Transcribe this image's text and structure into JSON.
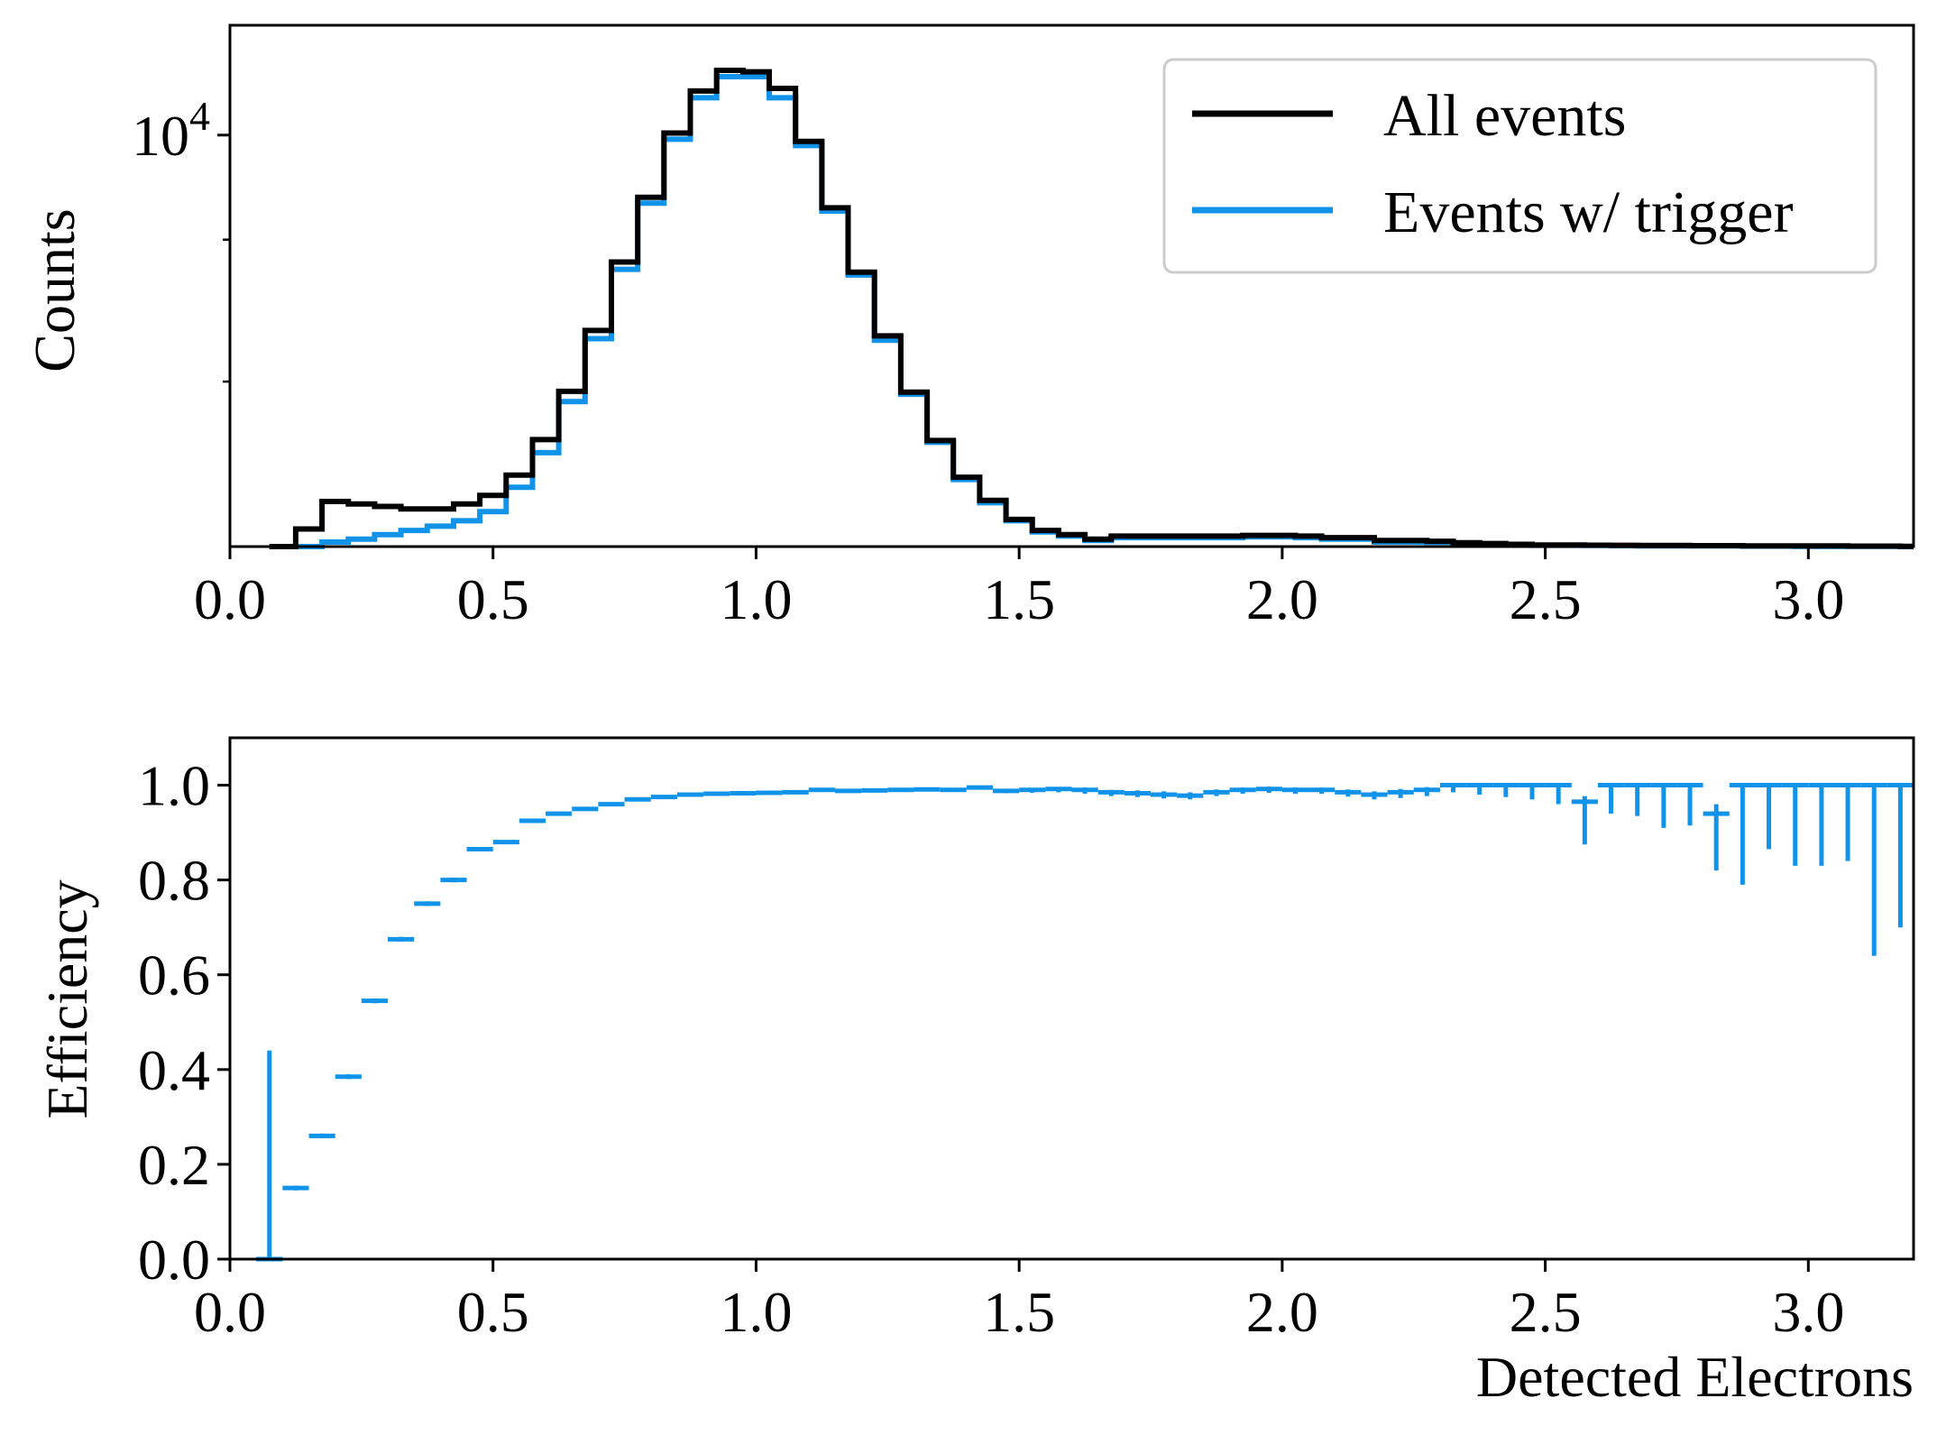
{
  "colors": {
    "all_events": "#000000",
    "triggered": "#1193ea",
    "axes": "#000000",
    "legend_border": "#cccccc",
    "background": "#ffffff"
  },
  "chart_data": [
    {
      "type": "histogram-step",
      "title": "",
      "ylabel": "Counts",
      "xlabel": "",
      "yscale": "log",
      "xlim": [
        0.0,
        3.2
      ],
      "ylim": [
        1340,
        17100
      ],
      "grid": false,
      "legend_position": "top-right",
      "x_ticks": [
        0.0,
        0.5,
        1.0,
        1.5,
        2.0,
        2.5,
        3.0
      ],
      "x_tick_labels": [
        "0.0",
        "0.5",
        "1.0",
        "1.5",
        "2.0",
        "2.5",
        "3.0"
      ],
      "y_major_ticks": [
        {
          "value": 10000,
          "base": "10",
          "exp": "4"
        }
      ],
      "y_minor_ticks": [
        3000,
        6000
      ],
      "bin_edges": [
        0.075,
        0.125,
        0.175,
        0.225,
        0.275,
        0.325,
        0.375,
        0.425,
        0.475,
        0.525,
        0.575,
        0.625,
        0.675,
        0.725,
        0.775,
        0.825,
        0.875,
        0.925,
        0.975,
        1.025,
        1.075,
        1.125,
        1.175,
        1.225,
        1.275,
        1.325,
        1.375,
        1.425,
        1.475,
        1.525,
        1.575,
        1.625,
        1.675,
        1.725,
        1.775,
        1.825,
        1.875,
        1.925,
        1.975,
        2.025,
        2.075,
        2.125,
        2.175,
        2.225,
        2.275,
        2.325,
        2.375,
        2.425,
        2.475,
        2.525,
        2.575,
        2.625,
        2.675,
        2.725,
        2.775,
        2.825,
        2.875,
        2.925,
        2.975,
        3.025,
        3.075,
        3.125,
        3.175,
        3.2
      ],
      "series": [
        {
          "name": "All events",
          "color": "#000000",
          "counts": [
            1340,
            1460,
            1670,
            1650,
            1630,
            1610,
            1610,
            1650,
            1720,
            1900,
            2260,
            2860,
            3850,
            5380,
            7380,
            10100,
            12400,
            13720,
            13620,
            12560,
            9700,
            7010,
            5120,
            3750,
            2850,
            2250,
            1880,
            1680,
            1530,
            1450,
            1420,
            1390,
            1410,
            1410,
            1410,
            1410,
            1410,
            1415,
            1415,
            1410,
            1400,
            1400,
            1380,
            1380,
            1375,
            1365,
            1360,
            1355,
            1350,
            1350,
            1349,
            1348,
            1347,
            1347,
            1346,
            1346,
            1345,
            1345,
            1344,
            1344,
            1343,
            1343,
            1342
          ]
        },
        {
          "name": "Events w/ trigger",
          "color": "#1193ea",
          "counts": [
            1340,
            1340,
            1370,
            1390,
            1420,
            1450,
            1480,
            1520,
            1590,
            1790,
            2120,
            2720,
            3700,
            5190,
            7170,
            9800,
            12000,
            13300,
            13300,
            12000,
            9500,
            6900,
            5050,
            3670,
            2820,
            2230,
            1860,
            1660,
            1520,
            1440,
            1410,
            1380,
            1400,
            1400,
            1400,
            1400,
            1400,
            1405,
            1405,
            1400,
            1390,
            1390,
            1370,
            1370,
            1368,
            1360,
            1356,
            1352,
            1348,
            1348,
            1347,
            1346,
            1345,
            1345,
            1344,
            1344,
            1343,
            1343,
            1342,
            1342,
            1341,
            1341,
            1340
          ]
        }
      ]
    },
    {
      "type": "errorbar",
      "title": "",
      "xlabel": "Detected Electrons",
      "ylabel": "Efficiency",
      "xlim": [
        0.0,
        3.2
      ],
      "ylim": [
        0.0,
        1.1
      ],
      "grid": false,
      "x_ticks": [
        0.0,
        0.5,
        1.0,
        1.5,
        2.0,
        2.5,
        3.0
      ],
      "x_tick_labels": [
        "0.0",
        "0.5",
        "1.0",
        "1.5",
        "2.0",
        "2.5",
        "3.0"
      ],
      "y_ticks": [
        0.0,
        0.2,
        0.4,
        0.6,
        0.8,
        1.0
      ],
      "y_tick_labels": [
        "0.0",
        "0.2",
        "0.4",
        "0.6",
        "0.8",
        "1.0"
      ],
      "series": [
        {
          "name": "Efficiency",
          "color": "#1193ea",
          "x": [
            0.075,
            0.125,
            0.175,
            0.225,
            0.275,
            0.325,
            0.375,
            0.425,
            0.475,
            0.525,
            0.575,
            0.625,
            0.675,
            0.725,
            0.775,
            0.825,
            0.875,
            0.925,
            0.975,
            1.025,
            1.075,
            1.125,
            1.175,
            1.225,
            1.275,
            1.325,
            1.375,
            1.425,
            1.475,
            1.525,
            1.575,
            1.625,
            1.675,
            1.725,
            1.775,
            1.825,
            1.875,
            1.925,
            1.975,
            2.025,
            2.075,
            2.125,
            2.175,
            2.225,
            2.275,
            2.325,
            2.375,
            2.425,
            2.475,
            2.525,
            2.575,
            2.625,
            2.675,
            2.725,
            2.775,
            2.825,
            2.875,
            2.925,
            2.975,
            3.025,
            3.075,
            3.125,
            3.175
          ],
          "xerr": 0.025,
          "y": [
            0.0,
            0.15,
            0.26,
            0.385,
            0.545,
            0.675,
            0.75,
            0.8,
            0.865,
            0.88,
            0.925,
            0.94,
            0.95,
            0.96,
            0.97,
            0.975,
            0.98,
            0.982,
            0.983,
            0.984,
            0.985,
            0.99,
            0.988,
            0.989,
            0.99,
            0.991,
            0.99,
            0.995,
            0.988,
            0.99,
            0.992,
            0.99,
            0.985,
            0.983,
            0.98,
            0.978,
            0.985,
            0.99,
            0.992,
            0.99,
            0.99,
            0.985,
            0.98,
            0.985,
            0.99,
            1.0,
            1.0,
            1.0,
            1.0,
            1.0,
            0.965,
            1.0,
            1.0,
            1.0,
            1.0,
            0.94,
            1.0,
            1.0,
            1.0,
            1.0,
            1.0,
            1.0,
            1.0
          ],
          "yerr_low": [
            0.0,
            0.005,
            0.005,
            0.005,
            0.005,
            0.005,
            0.005,
            0.005,
            0.004,
            0.004,
            0.003,
            0.003,
            0.002,
            0.002,
            0.001,
            0.001,
            0.001,
            0.001,
            0.001,
            0.001,
            0.001,
            0.001,
            0.001,
            0.001,
            0.002,
            0.002,
            0.003,
            0.004,
            0.005,
            0.006,
            0.007,
            0.008,
            0.008,
            0.008,
            0.008,
            0.008,
            0.008,
            0.008,
            0.008,
            0.008,
            0.008,
            0.009,
            0.01,
            0.012,
            0.013,
            0.015,
            0.02,
            0.025,
            0.03,
            0.04,
            0.09,
            0.06,
            0.065,
            0.09,
            0.085,
            0.12,
            0.21,
            0.135,
            0.17,
            0.17,
            0.16,
            0.36,
            0.3
          ],
          "yerr_high": [
            0.44,
            0.005,
            0.005,
            0.005,
            0.005,
            0.005,
            0.005,
            0.005,
            0.004,
            0.004,
            0.003,
            0.003,
            0.002,
            0.002,
            0.001,
            0.001,
            0.001,
            0.001,
            0.001,
            0.001,
            0.001,
            0.001,
            0.001,
            0.001,
            0.002,
            0.002,
            0.003,
            0.003,
            0.004,
            0.004,
            0.004,
            0.005,
            0.005,
            0.006,
            0.007,
            0.007,
            0.006,
            0.005,
            0.005,
            0.005,
            0.005,
            0.006,
            0.007,
            0.007,
            0.006,
            0.0,
            0.0,
            0.0,
            0.0,
            0.0,
            0.012,
            0.0,
            0.0,
            0.0,
            0.0,
            0.02,
            0.0,
            0.0,
            0.0,
            0.0,
            0.0,
            0.0,
            0.0
          ]
        }
      ]
    }
  ]
}
